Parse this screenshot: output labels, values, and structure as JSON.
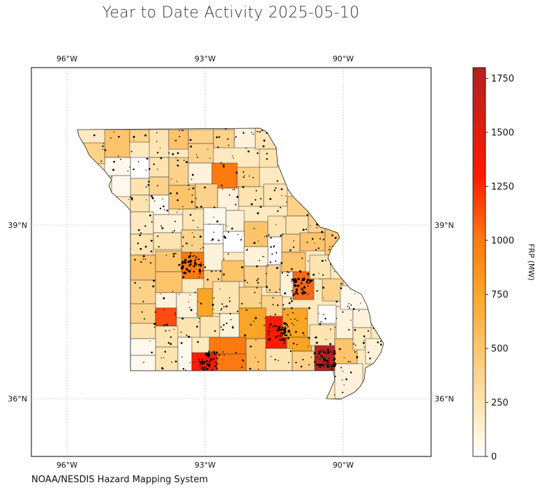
{
  "title": "Year to Date Activity 2025-05-10",
  "footer": "NOAA/NESDIS Hazard Mapping System",
  "map": {
    "lon_ticks": [
      "96°W",
      "93°W",
      "90°W"
    ],
    "lat_ticks": [
      "39°N",
      "36°N"
    ],
    "gridlines": true
  },
  "colorbar": {
    "label": "FRP (MW)",
    "ticks": [
      "0",
      "250",
      "500",
      "750",
      "1000",
      "1250",
      "1500",
      "1750"
    ],
    "range": [
      0,
      1800
    ],
    "colors": [
      "#ffffff",
      "#fee4b0",
      "#fdc46c",
      "#fba526",
      "#fd7a10",
      "#ff1a00",
      "#b22222"
    ]
  }
}
